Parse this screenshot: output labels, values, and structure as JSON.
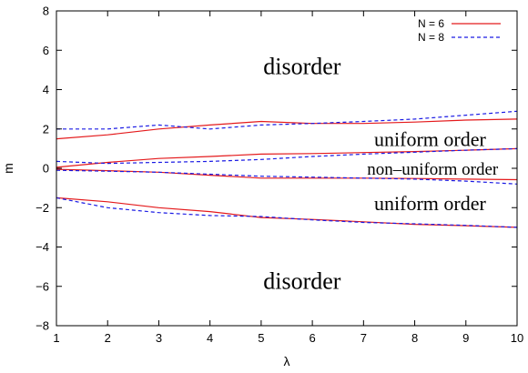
{
  "chart_data": {
    "type": "line",
    "title": "",
    "xlabel": "λ",
    "ylabel": "m",
    "xlim": [
      1,
      10
    ],
    "ylim": [
      -8,
      8
    ],
    "x_ticks": [
      1,
      2,
      3,
      4,
      5,
      6,
      7,
      8,
      9,
      10
    ],
    "y_ticks": [
      -8,
      -6,
      -4,
      -2,
      0,
      2,
      4,
      6,
      8
    ],
    "tick_labels": {
      "x": [
        "1",
        "2",
        "3",
        "4",
        "5",
        "6",
        "7",
        "8",
        "9",
        "10"
      ],
      "y": [
        "−8",
        "−6",
        "−4",
        "−2",
        "0",
        "2",
        "4",
        "6",
        "8"
      ]
    },
    "grid": false,
    "legend_position": "top-right",
    "legend": [
      {
        "name": "N = 6",
        "color": "#e41a1c",
        "dash": "solid"
      },
      {
        "name": "N = 8",
        "color": "#1a1ae4",
        "dash": "dashed"
      }
    ],
    "series": [
      {
        "name": "N = 6",
        "color": "#e41a1c",
        "dash": "solid",
        "curves": [
          {
            "x": [
              1,
              2,
              3,
              4,
              5,
              6,
              7,
              8,
              9,
              10
            ],
            "y": [
              1.5,
              1.7,
              2.0,
              2.2,
              2.38,
              2.28,
              2.28,
              2.35,
              2.45,
              2.5
            ]
          },
          {
            "x": [
              1,
              2,
              3,
              4,
              5,
              6,
              7,
              8,
              9,
              10
            ],
            "y": [
              0.05,
              0.3,
              0.5,
              0.6,
              0.72,
              0.75,
              0.8,
              0.85,
              0.92,
              1.0
            ]
          },
          {
            "x": [
              1,
              2,
              3,
              4,
              5,
              6,
              7,
              8,
              9,
              10
            ],
            "y": [
              -0.05,
              -0.12,
              -0.2,
              -0.35,
              -0.5,
              -0.5,
              -0.5,
              -0.52,
              -0.55,
              -0.58
            ]
          },
          {
            "x": [
              1,
              2,
              3,
              4,
              5,
              6,
              7,
              8,
              9,
              10
            ],
            "y": [
              -1.5,
              -1.7,
              -2.0,
              -2.2,
              -2.5,
              -2.6,
              -2.72,
              -2.85,
              -2.92,
              -3.0
            ]
          }
        ]
      },
      {
        "name": "N = 8",
        "color": "#1a1ae4",
        "dash": "dashed",
        "curves": [
          {
            "x": [
              1,
              2,
              3,
              4,
              5,
              6,
              7,
              8,
              9,
              10
            ],
            "y": [
              2.0,
              2.0,
              2.2,
              2.0,
              2.2,
              2.28,
              2.38,
              2.5,
              2.7,
              2.9
            ]
          },
          {
            "x": [
              1,
              2,
              3,
              4,
              5,
              6,
              7,
              8,
              9,
              10
            ],
            "y": [
              0.35,
              0.25,
              0.3,
              0.35,
              0.45,
              0.6,
              0.72,
              0.82,
              0.92,
              1.0
            ]
          },
          {
            "x": [
              1,
              2,
              3,
              4,
              5,
              6,
              7,
              8,
              9,
              10
            ],
            "y": [
              -0.1,
              -0.15,
              -0.2,
              -0.3,
              -0.4,
              -0.45,
              -0.5,
              -0.55,
              -0.65,
              -0.8
            ]
          },
          {
            "x": [
              1,
              2,
              3,
              4,
              5,
              6,
              7,
              8,
              9,
              10
            ],
            "y": [
              -1.5,
              -2.0,
              -2.25,
              -2.4,
              -2.45,
              -2.62,
              -2.75,
              -2.82,
              -2.9,
              -3.0
            ]
          }
        ]
      }
    ],
    "annotations": [
      {
        "text": "disorder",
        "x": 5.8,
        "y": 5.1,
        "size": "big"
      },
      {
        "text": "uniform order",
        "x": 8.3,
        "y": 1.45,
        "size": "mid"
      },
      {
        "text": "non–uniform order",
        "x": 8.35,
        "y": 0.0,
        "size": "small"
      },
      {
        "text": "uniform order",
        "x": 8.3,
        "y": -1.8,
        "size": "mid"
      },
      {
        "text": "disorder",
        "x": 5.8,
        "y": -5.8,
        "size": "big"
      }
    ]
  }
}
